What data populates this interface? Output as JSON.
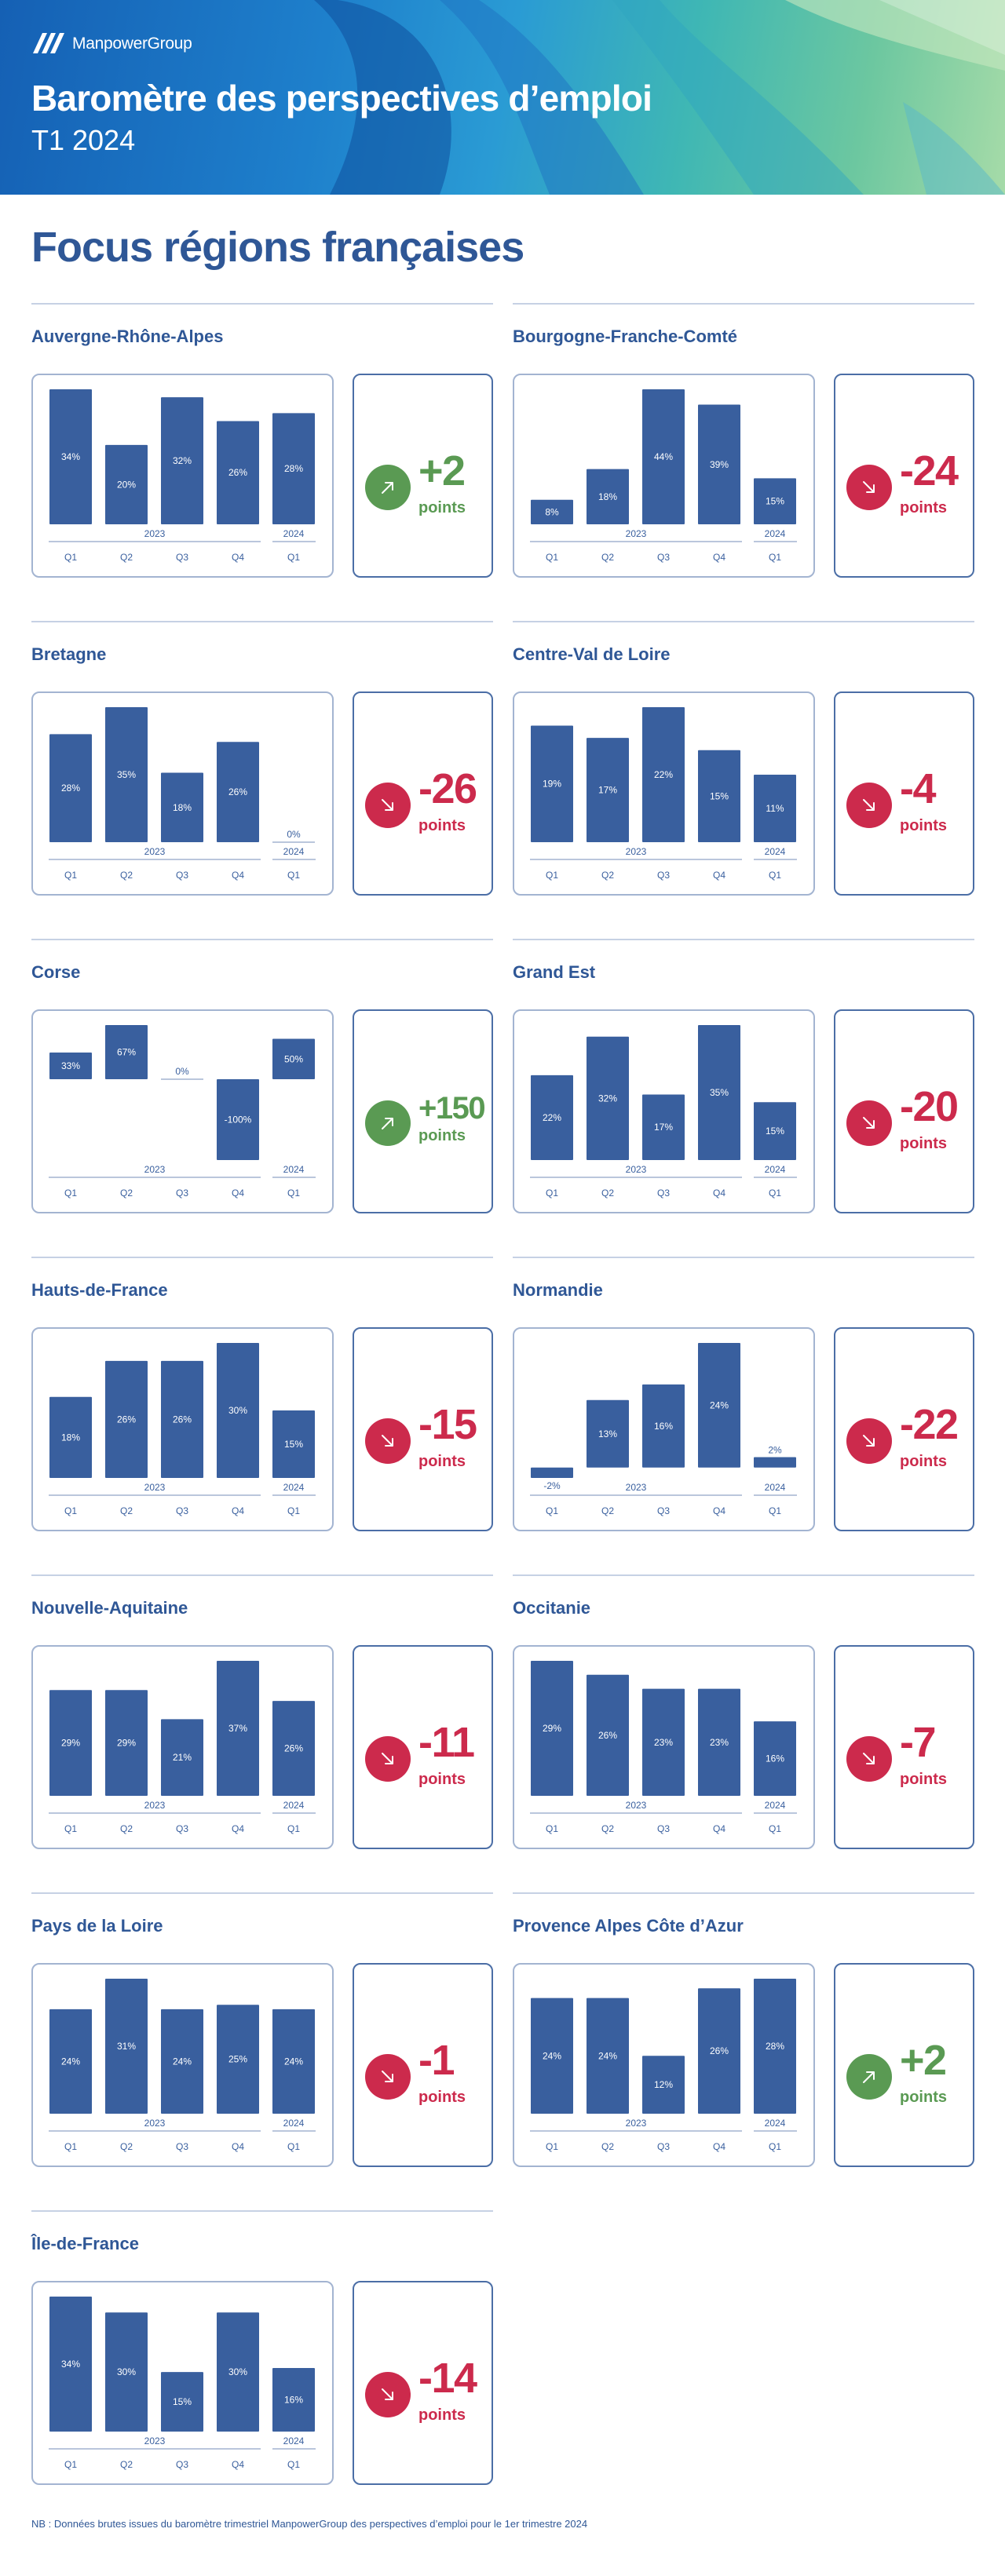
{
  "header": {
    "brand": "ManpowerGroup",
    "title": "Baromètre des perspectives d’emploi",
    "subtitle": "T1 2024"
  },
  "page_title": "Focus régions françaises",
  "delta_unit": "points",
  "footnote": "NB : Données brutes issues du baromètre trimestriel ManpowerGroup des perspectives d’emploi pour le 1er trimestre 2024",
  "colors": {
    "bar": "#395f9e",
    "axis": "#a3b4d1",
    "up": "#5a9a53",
    "down": "#cc2a4c",
    "title": "#2f5796"
  },
  "icons": {
    "up": "arrow-up-right-icon",
    "down": "arrow-down-right-icon"
  },
  "chart_data": [
    {
      "type": "bar",
      "title": "Auvergne-Rhône-Alpes",
      "categories": [
        "Q1",
        "Q2",
        "Q3",
        "Q4",
        "Q1"
      ],
      "years": [
        "2023",
        "2024"
      ],
      "values": [
        34,
        20,
        32,
        26,
        28
      ],
      "labels": [
        "34%",
        "20%",
        "32%",
        "26%",
        "28%"
      ],
      "delta": "+2",
      "trend": "up"
    },
    {
      "type": "bar",
      "title": "Bourgogne-Franche-Comté",
      "categories": [
        "Q1",
        "Q2",
        "Q3",
        "Q4",
        "Q1"
      ],
      "years": [
        "2023",
        "2024"
      ],
      "values": [
        8,
        18,
        44,
        39,
        15
      ],
      "labels": [
        "8%",
        "18%",
        "44%",
        "39%",
        "15%"
      ],
      "delta": "-24",
      "trend": "down"
    },
    {
      "type": "bar",
      "title": "Bretagne",
      "categories": [
        "Q1",
        "Q2",
        "Q3",
        "Q4",
        "Q1"
      ],
      "years": [
        "2023",
        "2024"
      ],
      "values": [
        28,
        35,
        18,
        26,
        0
      ],
      "labels": [
        "28%",
        "35%",
        "18%",
        "26%",
        "0%"
      ],
      "delta": "-26",
      "trend": "down"
    },
    {
      "type": "bar",
      "title": "Centre-Val de Loire",
      "categories": [
        "Q1",
        "Q2",
        "Q3",
        "Q4",
        "Q1"
      ],
      "years": [
        "2023",
        "2024"
      ],
      "values": [
        19,
        17,
        22,
        15,
        11
      ],
      "labels": [
        "19%",
        "17%",
        "22%",
        "15%",
        "11%"
      ],
      "delta": "-4",
      "trend": "down"
    },
    {
      "type": "bar",
      "title": "Corse",
      "categories": [
        "Q1",
        "Q2",
        "Q3",
        "Q4",
        "Q1"
      ],
      "years": [
        "2023",
        "2024"
      ],
      "values": [
        33,
        67,
        0,
        -100,
        50
      ],
      "labels": [
        "33%",
        "67%",
        "0%",
        "-100%",
        "50%"
      ],
      "delta": "+150",
      "trend": "up"
    },
    {
      "type": "bar",
      "title": "Grand Est",
      "categories": [
        "Q1",
        "Q2",
        "Q3",
        "Q4",
        "Q1"
      ],
      "years": [
        "2023",
        "2024"
      ],
      "values": [
        22,
        32,
        17,
        35,
        15
      ],
      "labels": [
        "22%",
        "32%",
        "17%",
        "35%",
        "15%"
      ],
      "delta": "-20",
      "trend": "down"
    },
    {
      "type": "bar",
      "title": "Hauts-de-France",
      "categories": [
        "Q1",
        "Q2",
        "Q3",
        "Q4",
        "Q1"
      ],
      "years": [
        "2023",
        "2024"
      ],
      "values": [
        18,
        26,
        26,
        30,
        15
      ],
      "labels": [
        "18%",
        "26%",
        "26%",
        "30%",
        "15%"
      ],
      "delta": "-15",
      "trend": "down"
    },
    {
      "type": "bar",
      "title": "Normandie",
      "categories": [
        "Q1",
        "Q2",
        "Q3",
        "Q4",
        "Q1"
      ],
      "years": [
        "2023",
        "2024"
      ],
      "values": [
        -2,
        13,
        16,
        24,
        2
      ],
      "labels": [
        "-2%",
        "13%",
        "16%",
        "24%",
        "2%"
      ],
      "delta": "-22",
      "trend": "down"
    },
    {
      "type": "bar",
      "title": "Nouvelle-Aquitaine",
      "categories": [
        "Q1",
        "Q2",
        "Q3",
        "Q4",
        "Q1"
      ],
      "years": [
        "2023",
        "2024"
      ],
      "values": [
        29,
        29,
        21,
        37,
        26
      ],
      "labels": [
        "29%",
        "29%",
        "21%",
        "37%",
        "26%"
      ],
      "delta": "-11",
      "trend": "down"
    },
    {
      "type": "bar",
      "title": "Occitanie",
      "categories": [
        "Q1",
        "Q2",
        "Q3",
        "Q4",
        "Q1"
      ],
      "years": [
        "2023",
        "2024"
      ],
      "values": [
        29,
        26,
        23,
        23,
        16
      ],
      "labels": [
        "29%",
        "26%",
        "23%",
        "23%",
        "16%"
      ],
      "delta": "-7",
      "trend": "down"
    },
    {
      "type": "bar",
      "title": "Pays de la Loire",
      "categories": [
        "Q1",
        "Q2",
        "Q3",
        "Q4",
        "Q1"
      ],
      "years": [
        "2023",
        "2024"
      ],
      "values": [
        24,
        31,
        24,
        25,
        24
      ],
      "labels": [
        "24%",
        "31%",
        "24%",
        "25%",
        "24%"
      ],
      "delta": "-1",
      "trend": "down"
    },
    {
      "type": "bar",
      "title": "Provence Alpes Côte d’Azur",
      "categories": [
        "Q1",
        "Q2",
        "Q3",
        "Q4",
        "Q1"
      ],
      "years": [
        "2023",
        "2024"
      ],
      "values": [
        24,
        24,
        12,
        26,
        28
      ],
      "labels": [
        "24%",
        "24%",
        "12%",
        "26%",
        "28%"
      ],
      "delta": "+2",
      "trend": "up"
    },
    {
      "type": "bar",
      "title": "Île-de-France",
      "categories": [
        "Q1",
        "Q2",
        "Q3",
        "Q4",
        "Q1"
      ],
      "years": [
        "2023",
        "2024"
      ],
      "values": [
        34,
        30,
        15,
        30,
        16
      ],
      "labels": [
        "34%",
        "30%",
        "15%",
        "30%",
        "16%"
      ],
      "delta": "-14",
      "trend": "down"
    }
  ]
}
